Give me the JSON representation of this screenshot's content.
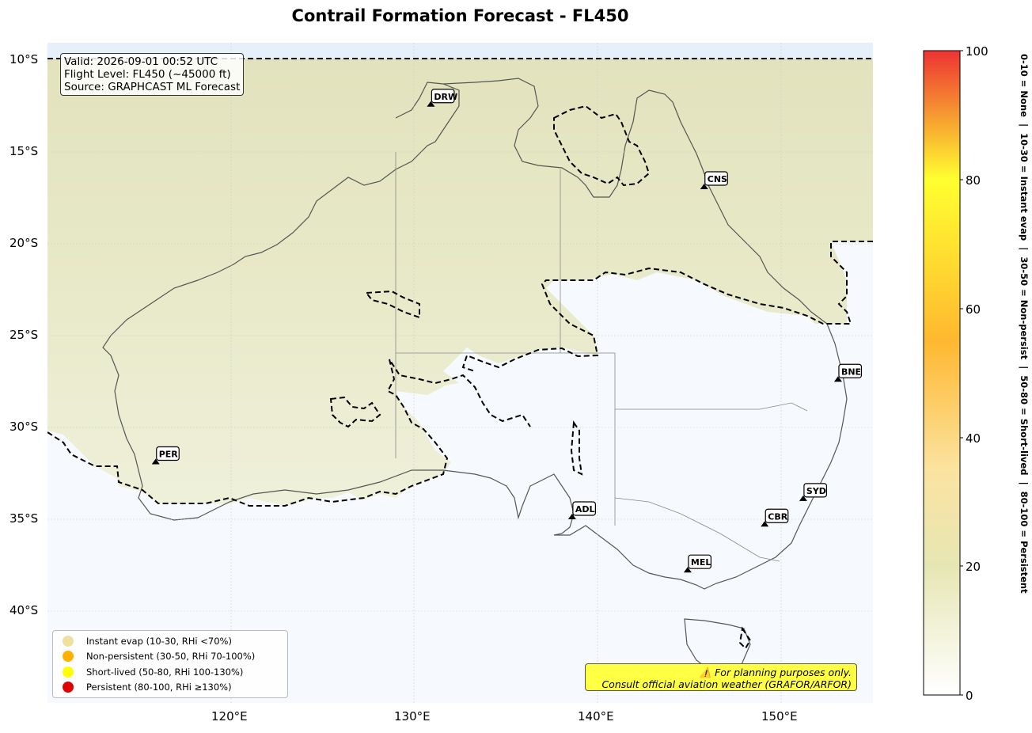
{
  "title": "Contrail Formation Forecast - FL450",
  "info_box": {
    "valid": "Valid: 2026-09-01 00:52 UTC",
    "flight_level": "Flight Level: FL450 (~45000 ft)",
    "source": "Source: GRAPHCAST ML Forecast"
  },
  "lat_labels": [
    "10°S",
    "15°S",
    "20°S",
    "25°S",
    "30°S",
    "35°S",
    "40°S"
  ],
  "lon_labels": [
    "120°E",
    "130°E",
    "140°E",
    "150°E"
  ],
  "airports": [
    {
      "code": "DRW",
      "lat": -12.4,
      "lon": 130.9
    },
    {
      "code": "CNS",
      "lat": -16.9,
      "lon": 145.8
    },
    {
      "code": "BNE",
      "lat": -27.4,
      "lon": 153.1
    },
    {
      "code": "PER",
      "lat": -31.9,
      "lon": 115.9
    },
    {
      "code": "ADL",
      "lat": -34.9,
      "lon": 138.6
    },
    {
      "code": "SYD",
      "lat": -33.9,
      "lon": 151.2
    },
    {
      "code": "CBR",
      "lat": -35.3,
      "lon": 149.1
    },
    {
      "code": "MEL",
      "lat": -37.8,
      "lon": 144.9
    }
  ],
  "legend": [
    {
      "label": "Instant evap (10-30, RHi <70%)",
      "color": "#f0e0a0"
    },
    {
      "label": "Non-persistent (30-50, RHi 70-100%)",
      "color": "#ffb000"
    },
    {
      "label": "Short-lived (50-80, RHi 100-130%)",
      "color": "#ffff00"
    },
    {
      "label": "Persistent (80-100, RHi ≥130%)",
      "color": "#e00000"
    }
  ],
  "disclaimer": {
    "line1": "⚠️ For planning purposes only.",
    "line2": "Consult official aviation weather (GRAFOR/ARFOR)"
  },
  "colorbar": {
    "ticks": [
      "0",
      "20",
      "40",
      "60",
      "80",
      "100"
    ],
    "range": [
      0,
      100
    ],
    "label": "0-10 = None  |  10-30 = Instant evap  |  30-50 = Non-persist  |  50-80 = Short-lived  |  80-100 = Persistent"
  },
  "map_extent": {
    "lon": [
      110,
      155
    ],
    "lat": [
      -45,
      -9
    ]
  }
}
